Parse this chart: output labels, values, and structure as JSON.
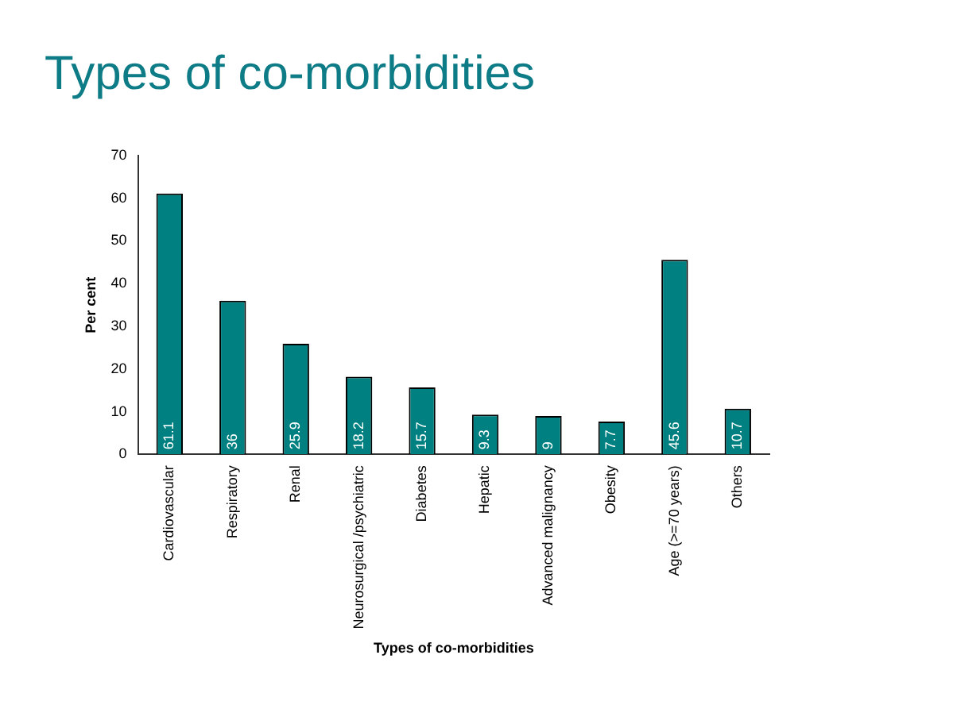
{
  "chart_data": {
    "type": "bar",
    "title": "Types of co-morbidities",
    "xlabel": "Types of co-morbidities",
    "ylabel": "Per cent",
    "categories": [
      "Cardiovascular",
      "Respiratory",
      "Renal",
      "Neurosurgical /psychiatric",
      "Diabetes",
      "Hepatic",
      "Advanced malignancy",
      "Obesity",
      "Age (>=70 years)",
      "Others"
    ],
    "values": [
      61.1,
      36,
      25.9,
      18.2,
      15.7,
      9.3,
      9,
      7.7,
      45.6,
      10.7
    ],
    "color": "#008080",
    "ylim": [
      0,
      70
    ],
    "yticks": [
      0,
      10,
      20,
      30,
      40,
      50,
      60,
      70
    ],
    "grid": false,
    "legend": false,
    "data_labels": true
  }
}
